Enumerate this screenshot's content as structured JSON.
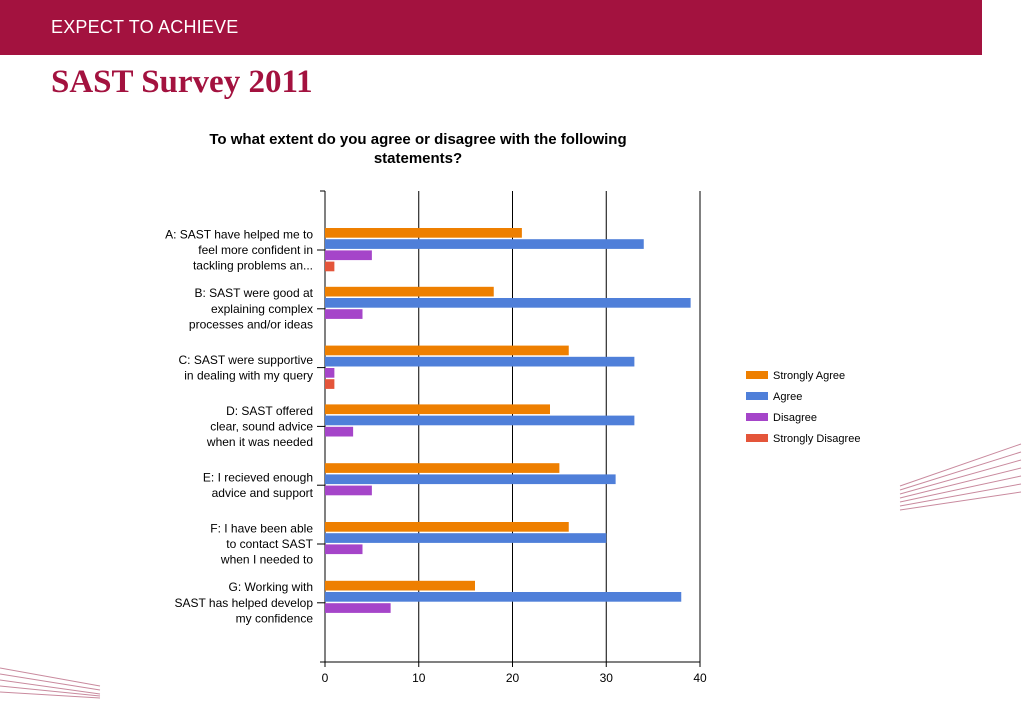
{
  "header": {
    "tagline": "EXPECT TO ACHIEVE"
  },
  "slide": {
    "title": "SAST Survey 2011"
  },
  "colors": {
    "brand": "#a3123f",
    "strongly_agree": "#ee7f00",
    "agree": "#4f7fd9",
    "disagree": "#a545c9",
    "strongly_disagree": "#e4553a"
  },
  "chart_data": {
    "type": "bar",
    "orientation": "horizontal",
    "title": [
      "To what extent do you agree or disagree with the following",
      "statements?"
    ],
    "categories": [
      [
        "A: SAST have helped me to",
        "feel more confident in",
        "tackling problems an..."
      ],
      [
        "B: SAST were good at",
        "explaining complex",
        "processes and/or ideas"
      ],
      [
        "C: SAST were supportive",
        "in dealing with my query"
      ],
      [
        "D: SAST offered",
        "clear, sound advice",
        "when it was needed"
      ],
      [
        "E: I recieved enough",
        "advice and support"
      ],
      [
        "F: I have been able",
        "to contact SAST",
        "when I needed to"
      ],
      [
        "G: Working with",
        "SAST has helped develop",
        "my confidence"
      ]
    ],
    "series": [
      {
        "name": "Strongly Agree",
        "color": "#ee7f00",
        "values": [
          21,
          18,
          26,
          24,
          25,
          26,
          16
        ]
      },
      {
        "name": "Agree",
        "color": "#4f7fd9",
        "values": [
          34,
          39,
          33,
          33,
          31,
          30,
          38
        ]
      },
      {
        "name": "Disagree",
        "color": "#a545c9",
        "values": [
          5,
          4,
          1,
          3,
          5,
          4,
          7
        ]
      },
      {
        "name": "Strongly Disagree",
        "color": "#e4553a",
        "values": [
          1,
          0,
          1,
          0,
          0,
          0,
          0
        ]
      }
    ],
    "xlim": [
      0,
      40
    ],
    "xticks": [
      0,
      10,
      20,
      30,
      40
    ],
    "grid": true,
    "legend_position": "right"
  }
}
